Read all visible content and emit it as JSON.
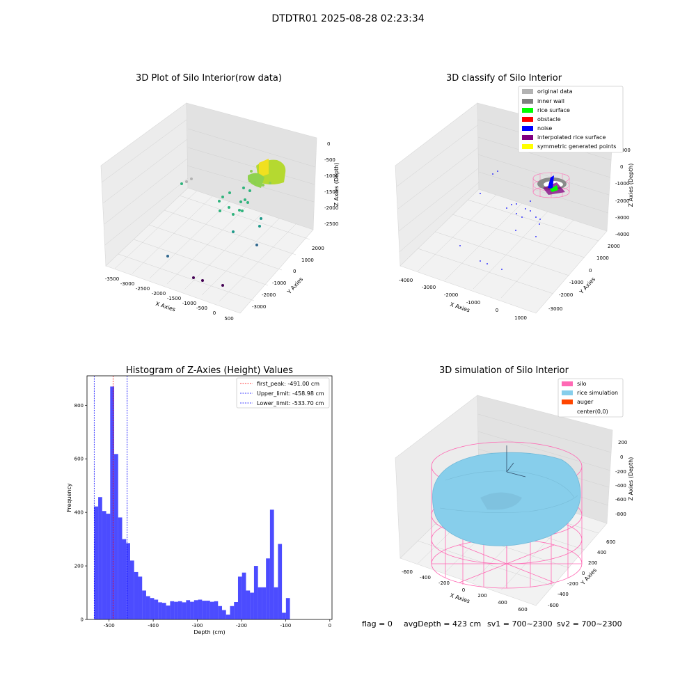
{
  "figure": {
    "title": "DTDTR01 2025-08-28 02:23:34",
    "status": {
      "flag": "flag = 0",
      "avg_depth": "avgDepth = 423 cm",
      "sv1": "sv1 = 700~2300",
      "sv2": "sv2 = 700~2300"
    }
  },
  "panels": {
    "raw": {
      "title": "3D Plot of Silo Interior(row data)",
      "xlabel": "X Axies",
      "ylabel": "Y Axies",
      "zlabel": "Z Axies (Depth)",
      "xticks": [
        "-3500",
        "-3000",
        "-2500",
        "-2000",
        "-1500",
        "-1000",
        "-500",
        "0",
        "500"
      ],
      "yticks": [
        "2000",
        "1000",
        "0",
        "-1000",
        "-2000",
        "-3000"
      ],
      "zticks": [
        "0",
        "-500",
        "-1000",
        "-1500",
        "-2000",
        "-2500"
      ]
    },
    "classify": {
      "title": "3D classify of Silo Interior",
      "xlabel": "X Axies",
      "ylabel": "Y Axies",
      "zlabel": "Z Axies (Depth)",
      "xticks": [
        "-4000",
        "-3000",
        "-2000",
        "-1000",
        "0",
        "1000"
      ],
      "yticks": [
        "2000",
        "1000",
        "0",
        "-1000",
        "-2000",
        "-3000"
      ],
      "zticks": [
        "1000",
        "0",
        "-1000",
        "-2000",
        "-3000",
        "-4000"
      ],
      "legend": [
        {
          "label": "original data",
          "color": "#b3b3b3"
        },
        {
          "label": "inner wall",
          "color": "#808080"
        },
        {
          "label": "rice surface",
          "color": "#00ff00"
        },
        {
          "label": "obstacle",
          "color": "#ff0000"
        },
        {
          "label": "noise",
          "color": "#0000ff"
        },
        {
          "label": "interpolated rice surface",
          "color": "#800080"
        },
        {
          "label": "symmetric generated points",
          "color": "#ffff00"
        }
      ]
    },
    "simulation": {
      "title": "3D simulation of Silo Interior",
      "xlabel": "X Axies",
      "ylabel": "Y Axies",
      "zlabel": "Z Axies (Depth)",
      "xticks": [
        "-600",
        "-400",
        "-200",
        "0",
        "200",
        "400",
        "600"
      ],
      "yticks": [
        "600",
        "400",
        "200",
        "0",
        "-200",
        "-400",
        "-600"
      ],
      "zticks": [
        "200",
        "0",
        "-200",
        "-400",
        "-600",
        "-800"
      ],
      "legend": [
        {
          "label": "silo",
          "color": "#ff69b4"
        },
        {
          "label": "rice simulation",
          "color": "#87ceeb"
        },
        {
          "label": "auger",
          "color": "#ff4500"
        },
        {
          "label": "center(0,0)",
          "color": "#ffffff"
        }
      ]
    }
  },
  "chart_data": {
    "type": "bar",
    "title": "Histogram of Z-Axies (Height) Values",
    "xlabel": "Depth (cm)",
    "ylabel": "Frequency",
    "xlim": [
      -550,
      5
    ],
    "ylim": [
      0,
      910
    ],
    "xticks": [
      -500,
      -400,
      -300,
      -200,
      -100,
      0
    ],
    "yticks": [
      0,
      200,
      400,
      600,
      800
    ],
    "bar_color": "#0000ff",
    "bin_width": 9.05,
    "bins_start": -533.7,
    "values": [
      422,
      457,
      405,
      395,
      870,
      618,
      381,
      300,
      285,
      220,
      177,
      160,
      108,
      87,
      80,
      74,
      64,
      62,
      52,
      68,
      66,
      68,
      64,
      72,
      66,
      72,
      74,
      70,
      70,
      66,
      68,
      50,
      35,
      18,
      50,
      65,
      160,
      175,
      108,
      100,
      200,
      120,
      120,
      228,
      410,
      120,
      282,
      25,
      80
    ],
    "reference_lines": [
      {
        "name": "first_peak",
        "value": -491.0,
        "label": "first_peak: -491.00 cm",
        "color": "#ff0000"
      },
      {
        "name": "upper_limit",
        "value": -458.98,
        "label": "Upper_limit: -458.98 cm",
        "color": "#0000ff"
      },
      {
        "name": "lower_limit",
        "value": -533.7,
        "label": "Lower_limit: -533.70 cm",
        "color": "#0000ff"
      }
    ]
  }
}
